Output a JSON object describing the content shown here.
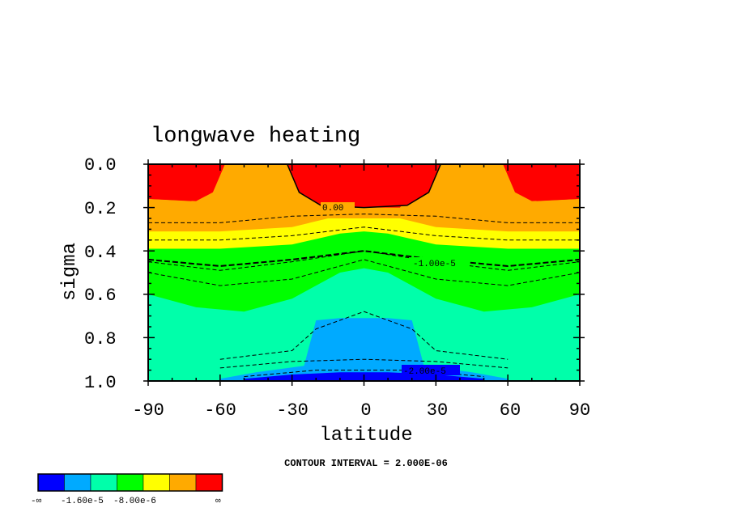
{
  "chart_data": {
    "type": "contour",
    "title": "longwave heating",
    "xlabel": "latitude",
    "ylabel": "sigma",
    "xlim": [
      -90,
      90
    ],
    "ylim": [
      1.0,
      0.0
    ],
    "x_ticks": [
      "-90",
      "-60",
      "-30",
      "0",
      "30",
      "60",
      "90"
    ],
    "y_ticks": [
      "0.0",
      "0.2",
      "0.4",
      "0.6",
      "0.8",
      "1.0"
    ],
    "contour_interval_text": "CONTOUR INTERVAL = 2.000E-06",
    "contour_labels": [
      "0.00",
      "-1.00e-5",
      "-2.00e-5"
    ],
    "colors": [
      "#0000ff",
      "#00aaff",
      "#00ffaa",
      "#00ff00",
      "#ffff00",
      "#ffaa00",
      "#ff0000"
    ],
    "colorbar_labels": [
      "-∞",
      "-1.60e-5",
      "-8.00e-6",
      "∞"
    ],
    "bands": [
      {
        "color": "#ff0000",
        "lat": [
          -90,
          -70,
          -63,
          -58,
          -30,
          0,
          30,
          58,
          63,
          70,
          90
        ],
        "sigma": [
          0.02,
          0.02,
          0.02,
          0.02,
          0.02,
          0.02,
          0.02,
          0.02,
          0.02,
          0.02,
          0.02
        ]
      },
      {
        "color": "#ffaa00",
        "lat": [
          -90,
          -70,
          -63,
          -58,
          -30,
          -15,
          0,
          15,
          30,
          58,
          63,
          70,
          90
        ],
        "sigma": [
          0.16,
          0.17,
          0.13,
          0.0,
          0.0,
          0.2,
          0.2,
          0.2,
          0.0,
          0.0,
          0.13,
          0.17,
          0.16
        ]
      },
      {
        "color": "#ffff00",
        "lat": [
          -90,
          -60,
          -30,
          -15,
          0,
          15,
          30,
          60,
          90
        ],
        "sigma": [
          0.31,
          0.31,
          0.29,
          0.25,
          0.25,
          0.25,
          0.29,
          0.31,
          0.31
        ]
      },
      {
        "color": "#00ff00",
        "lat": [
          -90,
          -60,
          -30,
          -10,
          0,
          10,
          30,
          60,
          90
        ],
        "sigma": [
          0.39,
          0.39,
          0.37,
          0.32,
          0.31,
          0.32,
          0.37,
          0.39,
          0.39
        ]
      },
      {
        "color": "#00ffaa",
        "lat": [
          -90,
          -70,
          -50,
          -30,
          -10,
          0,
          10,
          30,
          50,
          70,
          90
        ],
        "sigma": [
          0.6,
          0.66,
          0.68,
          0.62,
          0.5,
          0.48,
          0.5,
          0.62,
          0.68,
          0.66,
          0.6
        ]
      },
      {
        "color": "#00aaff",
        "lat": [
          -60,
          -45,
          -25,
          -20,
          -10,
          0,
          10,
          20,
          25,
          45,
          60
        ],
        "sigma": [
          0.99,
          0.96,
          0.93,
          0.72,
          0.71,
          0.71,
          0.71,
          0.72,
          0.93,
          0.96,
          0.99
        ]
      },
      {
        "color": "#0000ff",
        "lat": [
          -50,
          -30,
          -10,
          0,
          10,
          30,
          50
        ],
        "sigma": [
          0.99,
          0.97,
          0.96,
          0.96,
          0.96,
          0.97,
          0.99
        ]
      }
    ]
  }
}
